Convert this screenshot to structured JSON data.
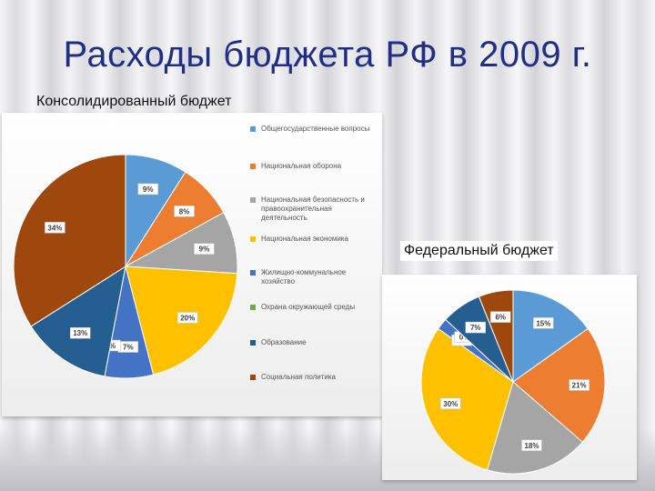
{
  "slide": {
    "title": "Расходы бюджета РФ в 2009 г.",
    "left_subtitle": "Консолидированный бюджет",
    "right_subtitle": "Федеральный бюджет"
  },
  "chart_data": [
    {
      "type": "pie",
      "title": "Консолидированный бюджет",
      "categories": [
        "Общегосударственные вопросы",
        "Национальная оборона",
        "Национальная безопасность и правоохранительная деятельность",
        "Национальная экономика",
        "Жилищно-коммунальное хозяйство",
        "Охрана окружающей среды",
        "Образование",
        "Социальная политика"
      ],
      "values": [
        9,
        8,
        9,
        20,
        7,
        0,
        13,
        34
      ],
      "labels": [
        "9%",
        "8%",
        "9%",
        "20%",
        "7%",
        "0%",
        "13%",
        "34%"
      ],
      "colors": [
        "#5b9bd5",
        "#ed7d31",
        "#a5a5a5",
        "#ffc000",
        "#4472c4",
        "#70ad47",
        "#255e91",
        "#9e480e"
      ],
      "legend": "right"
    },
    {
      "type": "pie",
      "title": "Федеральный бюджет",
      "categories": [
        "Общегосударственные вопросы",
        "Национальная оборона",
        "Национальная безопасность и правоохранительная деятельность",
        "Национальная экономика",
        "Жилищно-коммунальное хозяйство",
        "Охрана окружающей среды",
        "Образование",
        "Социальная политика"
      ],
      "values": [
        15,
        21,
        18,
        30,
        2,
        0,
        7,
        6
      ],
      "labels": [
        "15%",
        "21%",
        "18%",
        "30%",
        "2%",
        "0%",
        "7%",
        "6%"
      ],
      "colors": [
        "#5b9bd5",
        "#ed7d31",
        "#a5a5a5",
        "#ffc000",
        "#4472c4",
        "#70ad47",
        "#255e91",
        "#9e480e"
      ],
      "legend": "none"
    }
  ]
}
